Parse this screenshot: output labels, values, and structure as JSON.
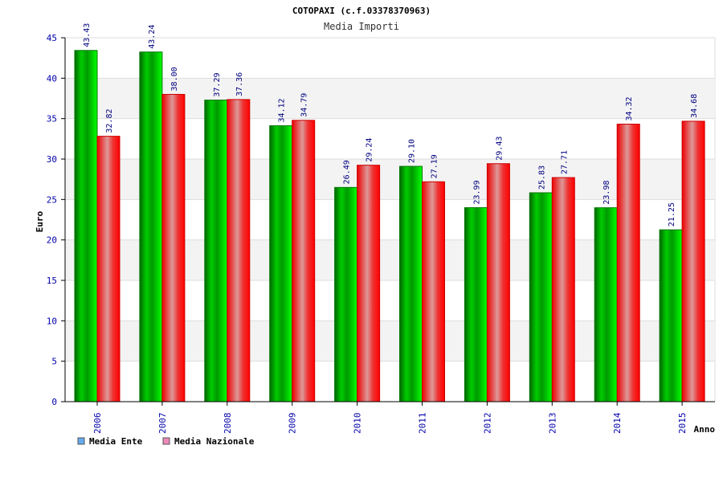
{
  "chart_data": {
    "type": "bar",
    "title": "COTOPAXI (c.f.03378370963)",
    "subtitle": "Media Importi",
    "xlabel": "Anno",
    "ylabel": "Euro",
    "ylim": [
      0,
      45
    ],
    "yticks": [
      0,
      5,
      10,
      15,
      20,
      25,
      30,
      35,
      40,
      45
    ],
    "categories": [
      "2006",
      "2007",
      "2008",
      "2009",
      "2010",
      "2011",
      "2012",
      "2013",
      "2014",
      "2015"
    ],
    "series": [
      {
        "name": "Media Ente",
        "values": [
          43.43,
          43.24,
          37.29,
          34.12,
          26.49,
          29.1,
          23.99,
          25.83,
          23.98,
          21.25
        ],
        "labels": [
          "43.43",
          "43.24",
          "37.29",
          "34.12",
          "26.49",
          "29.10",
          "23.99",
          "25.83",
          "23.98",
          "21.25"
        ],
        "color": "#00aa00",
        "legend_color": "#66aaee"
      },
      {
        "name": "Media Nazionale",
        "values": [
          32.82,
          38.0,
          37.36,
          34.79,
          29.24,
          27.19,
          29.43,
          27.71,
          34.32,
          34.68
        ],
        "labels": [
          "32.82",
          "38.00",
          "37.36",
          "34.79",
          "29.24",
          "27.19",
          "29.43",
          "27.71",
          "34.32",
          "34.68"
        ],
        "color": "#ee0000",
        "legend_color": "#ee88bb"
      }
    ],
    "grid": true,
    "legend": "bottom-left"
  }
}
